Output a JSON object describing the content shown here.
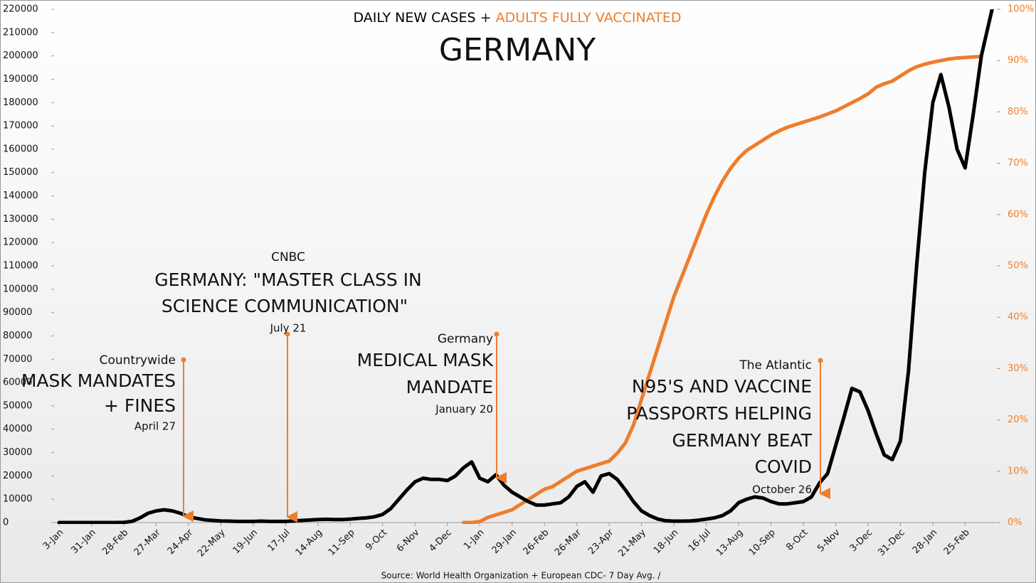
{
  "chart_data": {
    "type": "line",
    "title": "GERMANY",
    "legend_joiner": "+",
    "source": "Source: World Health Organization + European CDC- 7 Day Avg. /",
    "categories": [
      "3-Jan",
      null,
      null,
      null,
      "31-Jan",
      null,
      null,
      null,
      "28-Feb",
      null,
      null,
      null,
      "27-Mar",
      null,
      null,
      null,
      "24-Apr",
      null,
      null,
      null,
      "22-May",
      null,
      null,
      null,
      "19-Jun",
      null,
      null,
      null,
      "17-Jul",
      null,
      null,
      null,
      "14-Aug",
      null,
      null,
      null,
      "11-Sep",
      null,
      null,
      null,
      "9-Oct",
      null,
      null,
      null,
      "6-Nov",
      null,
      null,
      null,
      "4-Dec",
      null,
      null,
      null,
      "1-Jan",
      null,
      null,
      null,
      "29-Jan",
      null,
      null,
      null,
      "26-Feb",
      null,
      null,
      null,
      "26-Mar",
      null,
      null,
      null,
      "23-Apr",
      null,
      null,
      null,
      "21-May",
      null,
      null,
      null,
      "18-Jun",
      null,
      null,
      null,
      "16-Jul",
      null,
      null,
      null,
      "13-Aug",
      null,
      null,
      null,
      "10-Sep",
      null,
      null,
      null,
      "8-Oct",
      null,
      null,
      null,
      "5-Nov",
      null,
      null,
      null,
      "3-Dec",
      null,
      null,
      null,
      "31-Dec",
      null,
      null,
      null,
      "28-Jan",
      null,
      null,
      null,
      "25-Feb",
      null,
      null,
      null,
      null
    ],
    "series": [
      {
        "name": "DAILY NEW CASES",
        "color": "#000000",
        "axis": "y",
        "values": [
          0,
          0,
          0,
          0,
          0,
          0,
          0,
          0,
          100,
          500,
          2000,
          4000,
          5000,
          5500,
          5000,
          4000,
          2500,
          1800,
          1200,
          900,
          700,
          600,
          500,
          500,
          500,
          600,
          500,
          500,
          500,
          700,
          900,
          1100,
          1300,
          1400,
          1300,
          1300,
          1500,
          1800,
          2000,
          2500,
          3500,
          6000,
          10000,
          14000,
          17500,
          19000,
          18500,
          18500,
          18000,
          20000,
          23500,
          26000,
          19000,
          17500,
          20500,
          16000,
          13000,
          11000,
          9000,
          7500,
          7500,
          8000,
          8500,
          11000,
          15500,
          17500,
          13000,
          20000,
          21000,
          18500,
          14000,
          9000,
          5000,
          3000,
          1500,
          800,
          600,
          600,
          700,
          1000,
          1500,
          2000,
          3000,
          5000,
          8500,
          10000,
          11000,
          10500,
          9000,
          8000,
          8000,
          8500,
          9000,
          11000,
          17000,
          21000,
          33000,
          45000,
          57500,
          56000,
          48000,
          38000,
          29000,
          27000,
          35000,
          65000,
          110000,
          150000,
          180000,
          192000,
          178000,
          160000,
          152000,
          175000,
          200000,
          215000,
          230000
        ]
      },
      {
        "name": "ADULTS FULLY VACCINATED",
        "color": "#ee7d2b",
        "axis": "y2",
        "values": [
          null,
          null,
          null,
          null,
          null,
          null,
          null,
          null,
          null,
          null,
          null,
          null,
          null,
          null,
          null,
          null,
          null,
          null,
          null,
          null,
          null,
          null,
          null,
          null,
          null,
          null,
          null,
          null,
          null,
          null,
          null,
          null,
          null,
          null,
          null,
          null,
          null,
          null,
          null,
          null,
          null,
          null,
          null,
          null,
          null,
          null,
          null,
          null,
          null,
          null,
          0,
          0,
          0.2,
          1,
          1.5,
          2,
          2.5,
          3.5,
          4.5,
          5.5,
          6.5,
          7,
          8,
          9,
          10,
          10.5,
          11,
          11.5,
          12,
          13.5,
          15.5,
          19,
          24,
          29,
          34,
          39,
          44,
          48,
          52,
          56,
          60,
          63.5,
          66.5,
          69,
          71,
          72.5,
          73.5,
          74.5,
          75.5,
          76.3,
          77,
          77.5,
          78,
          78.5,
          79,
          79.6,
          80.2,
          81,
          81.8,
          82.6,
          83.5,
          84.8,
          85.5,
          86,
          87,
          88,
          88.8,
          89.3,
          89.7,
          90,
          90.3,
          90.5,
          90.6,
          90.7,
          90.8,
          null,
          null
        ]
      }
    ],
    "ylim": [
      0,
      220000
    ],
    "yticks": [
      0,
      10000,
      20000,
      30000,
      40000,
      50000,
      60000,
      70000,
      80000,
      90000,
      100000,
      110000,
      120000,
      130000,
      140000,
      150000,
      160000,
      170000,
      180000,
      190000,
      200000,
      210000,
      220000
    ],
    "y2lim": [
      0,
      100
    ],
    "y2ticks": [
      {
        "value": 0,
        "label": "0%"
      },
      {
        "value": 10,
        "label": "10%"
      },
      {
        "value": 20,
        "label": "20%"
      },
      {
        "value": 30,
        "label": "30%"
      },
      {
        "value": 40,
        "label": "40%"
      },
      {
        "value": 50,
        "label": "50%"
      },
      {
        "value": 60,
        "label": "60%"
      },
      {
        "value": 70,
        "label": "70%"
      },
      {
        "value": 80,
        "label": "80%"
      },
      {
        "value": 90,
        "label": "90%"
      },
      {
        "value": 100,
        "label": "100%"
      }
    ],
    "annotations": [
      {
        "source": "Countrywide",
        "headline": [
          "MASK MANDATES",
          "+ FINES"
        ],
        "date": "April 27"
      },
      {
        "source": "CNBC",
        "headline": [
          "GERMANY: \"MASTER CLASS IN",
          "SCIENCE COMMUNICATION\""
        ],
        "date": "July 21"
      },
      {
        "source": "Germany",
        "headline": [
          "MEDICAL MASK",
          "MANDATE"
        ],
        "date": "January 20"
      },
      {
        "source": "The Atlantic",
        "headline": [
          "N95'S AND VACCINE",
          "PASSPORTS HELPING",
          "GERMANY BEAT",
          "COVID"
        ],
        "date": "October 26"
      }
    ]
  }
}
